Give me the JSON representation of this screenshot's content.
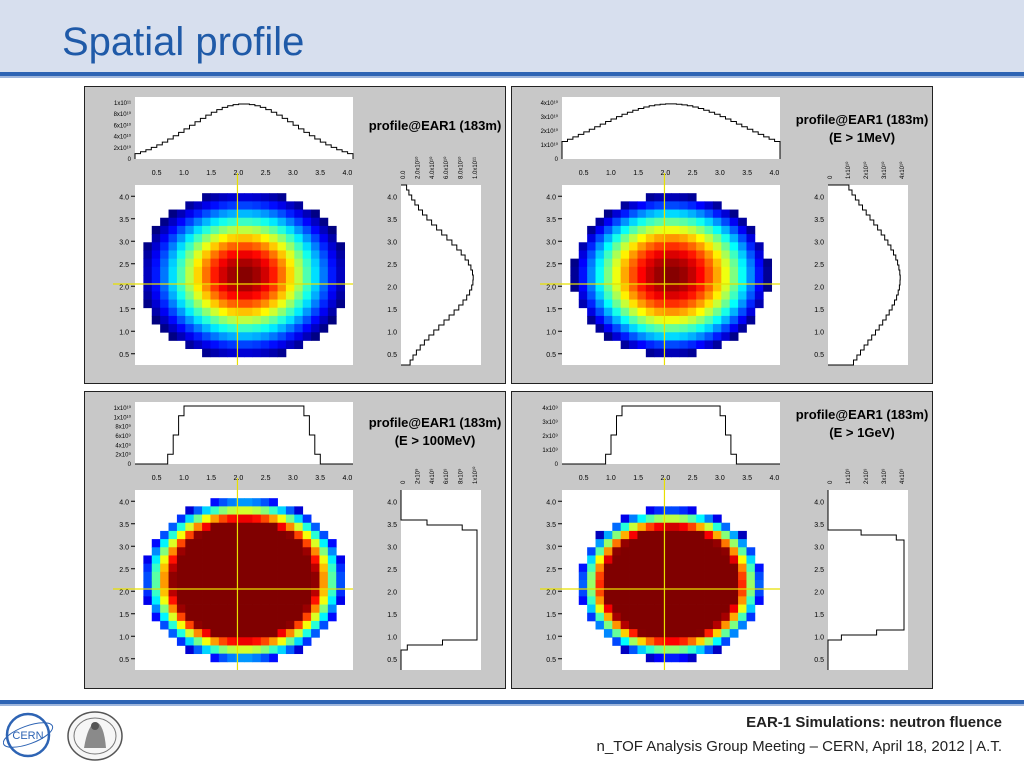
{
  "slide": {
    "title": "Spatial profile",
    "footer_title": "EAR-1 Simulations: neutron fluence",
    "footer_subtitle": "n_TOF Analysis Group Meeting – CERN, April 18, 2012 | A.T.",
    "logo_text": "CERN"
  },
  "panels": [
    {
      "label_line1": "profile@EAR1 (183m)",
      "label_line2": "",
      "top_ticks": [
        "0",
        "2x10¹⁰",
        "4x10¹⁰",
        "6x10¹⁰",
        "8x10¹⁰",
        "1x10¹¹"
      ],
      "side_ticks": [
        "0.0",
        "2.0x10¹⁰",
        "4.0x10¹⁰",
        "6.0x10¹⁰",
        "8.0x10¹⁰",
        "1.0x10¹¹"
      ],
      "core_radius_fraction": 0.15,
      "style": "gaussian"
    },
    {
      "label_line1": "profile@EAR1 (183m)",
      "label_line2": "(E > 1MeV)",
      "top_ticks": [
        "0",
        "1x10¹⁰",
        "2x10¹⁰",
        "3x10¹⁰",
        "4x10¹⁰"
      ],
      "side_ticks": [
        "0",
        "1x10¹⁰",
        "2x10¹⁰",
        "3x10¹⁰",
        "4x10¹⁰"
      ],
      "core_radius_fraction": 0.35,
      "style": "gaussian"
    },
    {
      "label_line1": "profile@EAR1 (183m)",
      "label_line2": "(E > 100MeV)",
      "top_ticks": [
        "0",
        "2x10⁹",
        "4x10⁹",
        "6x10⁹",
        "8x10⁹",
        "1x10¹⁰",
        "1x10¹⁰"
      ],
      "side_ticks": [
        "0",
        "2x10⁹",
        "4x10⁹",
        "6x10⁹",
        "8x10⁹",
        "1x10¹⁰"
      ],
      "core_radius_fraction": 0.7,
      "style": "flat"
    },
    {
      "label_line1": "profile@EAR1 (183m)",
      "label_line2": "(E > 1GeV)",
      "top_ticks": [
        "0",
        "1x10⁹",
        "2x10⁹",
        "3x10⁹",
        "4x10⁹"
      ],
      "side_ticks": [
        "0",
        "1x10⁹",
        "2x10⁹",
        "3x10⁹",
        "4x10⁹"
      ],
      "core_radius_fraction": 0.72,
      "style": "flat-small"
    }
  ],
  "axis_ticks": [
    "0.5",
    "1.0",
    "1.5",
    "2.0",
    "2.5",
    "3.0",
    "3.5",
    "4.0"
  ],
  "colors": {
    "title": "#1f5aa8",
    "accent_line": "#2e64b4",
    "panel_bg": "#c8c8c8",
    "crosshair": "#e8e000"
  }
}
